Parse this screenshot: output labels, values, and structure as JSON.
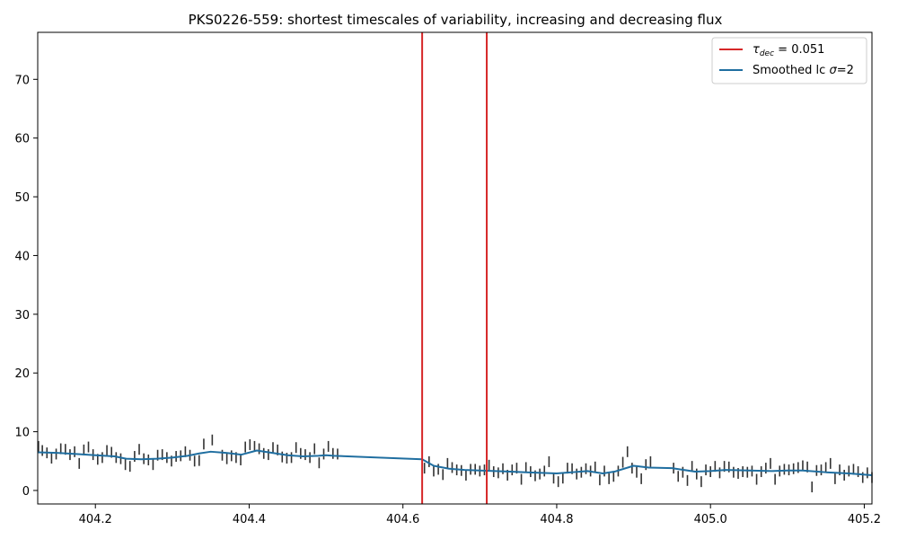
{
  "chart_data": {
    "type": "line",
    "title": "PKS0226-559: shortest timescales of variability, increasing and decreasing flux",
    "xlabel": "",
    "ylabel": "",
    "xlim": [
      404.125,
      405.21
    ],
    "ylim": [
      -2.3,
      78
    ],
    "xticks": [
      404.2,
      404.4,
      404.6,
      404.8,
      405.0,
      405.2
    ],
    "xtick_labels": [
      "404.2",
      "404.4",
      "404.6",
      "404.8",
      "405.0",
      "405.2"
    ],
    "yticks": [
      0,
      10,
      20,
      30,
      40,
      50,
      60,
      70
    ],
    "ytick_labels": [
      "0",
      "10",
      "20",
      "30",
      "40",
      "50",
      "60",
      "70"
    ],
    "grid": false,
    "legend_placement": "top-right",
    "vertical_lines": {
      "x": [
        404.625,
        404.709
      ],
      "color": "#d62728"
    },
    "legend": [
      {
        "label_main": "τ",
        "label_sub": "dec",
        "label_rest": " = 0.051",
        "color": "#d62728"
      },
      {
        "label_main": "Smoothed lc ",
        "label_sigma": "σ",
        "label_rest": "=2",
        "color": "#1f6ea0"
      }
    ],
    "series": [
      {
        "name": "Smoothed lc σ=2",
        "color": "#1f6ea0",
        "x": [
          404.125,
          404.15,
          404.175,
          404.2,
          404.225,
          404.24,
          404.26,
          404.28,
          404.3,
          404.32,
          404.335,
          404.35,
          404.37,
          404.39,
          404.41,
          404.43,
          404.45,
          404.47,
          404.49,
          404.5,
          404.51,
          404.625,
          404.64,
          404.66,
          404.68,
          404.7,
          404.72,
          404.74,
          404.76,
          404.78,
          404.8,
          404.82,
          404.84,
          404.86,
          404.875,
          404.9,
          404.92,
          404.95,
          404.98,
          405.0,
          405.02,
          405.05,
          405.08,
          405.1,
          405.12,
          405.15,
          405.18,
          405.21
        ],
        "values": [
          6.5,
          6.4,
          6.2,
          6.0,
          5.8,
          5.4,
          5.3,
          5.4,
          5.6,
          5.9,
          6.3,
          6.6,
          6.4,
          6.1,
          6.8,
          6.4,
          6.0,
          5.8,
          5.9,
          6.0,
          5.9,
          5.3,
          4.2,
          3.7,
          3.5,
          3.4,
          3.3,
          3.2,
          3.1,
          3.0,
          2.9,
          3.1,
          3.3,
          2.9,
          3.2,
          4.2,
          3.9,
          3.8,
          3.2,
          3.3,
          3.5,
          3.4,
          3.3,
          3.4,
          3.4,
          3.1,
          2.9,
          2.6
        ]
      }
    ],
    "errorbars": {
      "color": "#333333",
      "x": [
        404.126,
        404.131,
        404.137,
        404.143,
        404.149,
        404.155,
        404.161,
        404.167,
        404.173,
        404.179,
        404.185,
        404.191,
        404.197,
        404.203,
        404.209,
        404.215,
        404.221,
        404.227,
        404.233,
        404.239,
        404.245,
        404.251,
        404.257,
        404.263,
        404.269,
        404.275,
        404.281,
        404.287,
        404.293,
        404.299,
        404.305,
        404.311,
        404.317,
        404.323,
        404.329,
        404.335,
        404.341,
        404.352,
        404.365,
        404.371,
        404.377,
        404.383,
        404.389,
        404.395,
        404.401,
        404.407,
        404.413,
        404.419,
        404.425,
        404.431,
        404.437,
        404.443,
        404.449,
        404.455,
        404.461,
        404.467,
        404.473,
        404.479,
        404.485,
        404.491,
        404.497,
        404.503,
        404.509,
        404.515,
        404.628,
        404.634,
        404.64,
        404.646,
        404.652,
        404.658,
        404.664,
        404.67,
        404.676,
        404.682,
        404.688,
        404.694,
        404.7,
        404.706,
        404.712,
        404.718,
        404.724,
        404.73,
        404.736,
        404.742,
        404.748,
        404.754,
        404.76,
        404.766,
        404.772,
        404.778,
        404.784,
        404.79,
        404.796,
        404.802,
        404.808,
        404.814,
        404.82,
        404.826,
        404.832,
        404.838,
        404.844,
        404.85,
        404.856,
        404.862,
        404.868,
        404.874,
        404.88,
        404.886,
        404.892,
        404.898,
        404.904,
        404.91,
        404.916,
        404.922,
        404.952,
        404.958,
        404.964,
        404.97,
        404.976,
        404.982,
        404.988,
        404.994,
        405.0,
        405.006,
        405.012,
        405.018,
        405.024,
        405.03,
        405.036,
        405.042,
        405.048,
        405.054,
        405.06,
        405.066,
        405.072,
        405.078,
        405.084,
        405.09,
        405.096,
        405.102,
        405.108,
        405.114,
        405.12,
        405.126,
        405.132,
        405.138,
        405.144,
        405.15,
        405.156,
        405.162,
        405.168,
        405.174,
        405.18,
        405.186,
        405.192,
        405.198,
        405.204,
        405.21
      ],
      "values": [
        7.5,
        6.8,
        6.4,
        5.5,
        6.2,
        7.1,
        7.0,
        6.1,
        6.6,
        4.6,
        6.9,
        7.4,
        6.1,
        5.3,
        5.6,
        6.8,
        6.5,
        5.6,
        5.4,
        4.4,
        4.1,
        5.8,
        7.0,
        5.4,
        5.2,
        4.4,
        6.0,
        6.1,
        5.6,
        5.0,
        5.8,
        5.9,
        6.6,
        6.0,
        5.0,
        5.1,
        7.9,
        8.6,
        6.0,
        5.4,
        5.9,
        5.6,
        5.2,
        7.4,
        7.8,
        7.5,
        7.1,
        6.3,
        6.1,
        7.3,
        6.9,
        5.7,
        5.5,
        5.6,
        7.3,
        6.3,
        6.1,
        5.6,
        7.1,
        4.7,
        6.2,
        7.5,
        6.3,
        6.2,
        3.8,
        4.9,
        3.3,
        3.6,
        2.7,
        4.6,
        3.9,
        3.5,
        3.4,
        2.6,
        3.6,
        3.6,
        3.3,
        3.5,
        4.3,
        3.2,
        3.0,
        3.7,
        2.6,
        3.5,
        3.8,
        1.9,
        3.9,
        3.2,
        2.5,
        2.8,
        3.3,
        4.9,
        2.1,
        1.5,
        2.1,
        3.8,
        3.7,
        2.8,
        3.1,
        3.7,
        3.3,
        4.0,
        1.8,
        3.3,
        2.0,
        2.4,
        3.3,
        4.8,
        6.6,
        3.8,
        3.1,
        2.0,
        4.4,
        4.9,
        3.8,
        2.4,
        3.1,
        1.7,
        4.1,
        2.8,
        1.5,
        3.5,
        3.2,
        4.1,
        3.0,
        4.1,
        4.0,
        3.1,
        2.9,
        3.2,
        3.1,
        3.3,
        1.9,
        3.2,
        3.8,
        4.6,
        1.9,
        3.3,
        3.6,
        3.5,
        3.7,
        3.9,
        4.2,
        4.0,
        0.6,
        3.4,
        3.5,
        3.9,
        4.6,
        2.0,
        3.5,
        2.6,
        3.3,
        3.6,
        3.2,
        2.2,
        3.0,
        2.2
      ]
    }
  }
}
